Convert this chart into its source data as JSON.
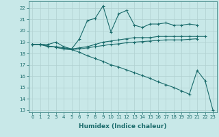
{
  "bg_color": "#c8e8e8",
  "grid_color": "#b0d0d0",
  "line_color": "#1a6b6b",
  "line_width": 0.8,
  "marker": "+",
  "marker_size": 3,
  "xlabel": "Humidex (Indice chaleur)",
  "xlabel_fontsize": 6.5,
  "tick_fontsize": 5.0,
  "xlim": [
    -0.5,
    23.5
  ],
  "ylim": [
    12.8,
    22.6
  ],
  "yticks": [
    13,
    14,
    15,
    16,
    17,
    18,
    19,
    20,
    21,
    22
  ],
  "xticks": [
    0,
    1,
    2,
    3,
    4,
    5,
    6,
    7,
    8,
    9,
    10,
    11,
    12,
    13,
    14,
    15,
    16,
    17,
    18,
    19,
    20,
    21,
    22,
    23
  ],
  "series": [
    [
      18.8,
      18.8,
      18.8,
      19.0,
      18.6,
      18.4,
      19.3,
      20.9,
      21.1,
      22.2,
      19.9,
      21.5,
      21.8,
      20.5,
      20.3,
      20.6,
      20.6,
      20.7,
      20.5,
      20.5,
      20.6,
      20.5,
      null,
      null
    ],
    [
      18.8,
      18.8,
      18.6,
      18.6,
      18.5,
      18.4,
      18.5,
      18.6,
      18.8,
      19.0,
      19.1,
      19.2,
      19.3,
      19.4,
      19.4,
      19.4,
      19.5,
      19.5,
      19.5,
      19.5,
      19.5,
      19.5,
      19.5,
      null
    ],
    [
      18.8,
      18.8,
      18.65,
      18.55,
      18.4,
      18.35,
      18.1,
      17.8,
      17.55,
      17.3,
      17.0,
      16.8,
      16.55,
      16.3,
      16.05,
      15.8,
      15.5,
      15.25,
      15.0,
      14.7,
      14.4,
      16.5,
      15.6,
      13.0
    ],
    [
      18.8,
      18.8,
      18.65,
      18.55,
      18.4,
      18.35,
      18.4,
      18.5,
      18.6,
      18.7,
      18.8,
      18.85,
      18.95,
      19.0,
      19.05,
      19.1,
      19.15,
      19.2,
      19.2,
      19.2,
      19.25,
      19.3,
      null,
      null
    ]
  ]
}
